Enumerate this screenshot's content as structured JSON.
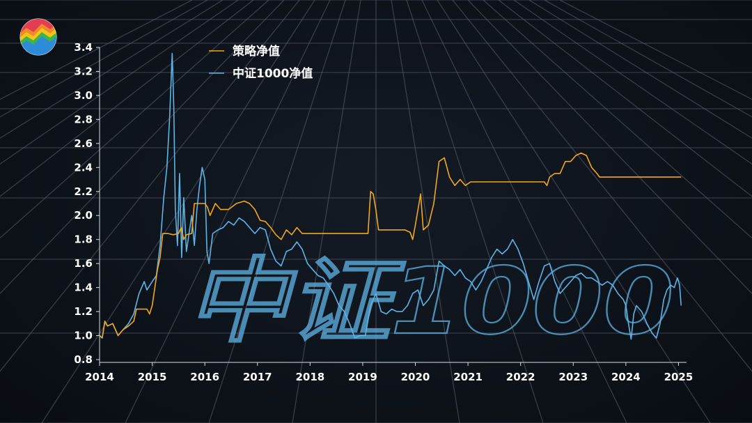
{
  "watermark_text": "中证1000",
  "logo_icon": "rainbow-zigzag-logo-icon",
  "colors": {
    "background": "#0c1118",
    "grid": "#5b6270",
    "strategy": "#f2a81d",
    "index": "#5fb4e6",
    "text": "#ffffff"
  },
  "chart_data": {
    "type": "line",
    "title": "",
    "xlabel": "",
    "ylabel": "",
    "xlim": [
      2014.0,
      2025.1
    ],
    "ylim": [
      0.8,
      3.4
    ],
    "x_ticks": [
      "2014",
      "2015",
      "2016",
      "2017",
      "2018",
      "2019",
      "2020",
      "2021",
      "2022",
      "2023",
      "2024",
      "2025"
    ],
    "y_ticks": [
      "0.8",
      "1.0",
      "1.2",
      "1.4",
      "1.6",
      "1.8",
      "2.0",
      "2.2",
      "2.4",
      "2.6",
      "2.8",
      "3.0",
      "3.2",
      "3.4"
    ],
    "legend_position": "top-left",
    "grid": true,
    "series": [
      {
        "name": "策略净值",
        "color": "#f2a81d",
        "points": [
          [
            2014.0,
            1.0
          ],
          [
            2014.05,
            0.98
          ],
          [
            2014.1,
            1.12
          ],
          [
            2014.15,
            1.08
          ],
          [
            2014.25,
            1.1
          ],
          [
            2014.35,
            1.0
          ],
          [
            2014.45,
            1.05
          ],
          [
            2014.55,
            1.08
          ],
          [
            2014.65,
            1.12
          ],
          [
            2014.7,
            1.22
          ],
          [
            2014.9,
            1.22
          ],
          [
            2014.95,
            1.18
          ],
          [
            2015.0,
            1.25
          ],
          [
            2015.05,
            1.4
          ],
          [
            2015.1,
            1.55
          ],
          [
            2015.15,
            1.65
          ],
          [
            2015.2,
            1.85
          ],
          [
            2015.3,
            1.85
          ],
          [
            2015.4,
            1.84
          ],
          [
            2015.5,
            1.85
          ],
          [
            2015.55,
            1.9
          ],
          [
            2015.6,
            1.8
          ],
          [
            2015.65,
            1.84
          ],
          [
            2015.75,
            1.85
          ],
          [
            2015.8,
            2.1
          ],
          [
            2015.95,
            2.1
          ],
          [
            2016.0,
            2.1
          ],
          [
            2016.05,
            2.07
          ],
          [
            2016.1,
            2.0
          ],
          [
            2016.2,
            2.1
          ],
          [
            2016.3,
            2.05
          ],
          [
            2016.45,
            2.05
          ],
          [
            2016.6,
            2.1
          ],
          [
            2016.75,
            2.12
          ],
          [
            2016.85,
            2.1
          ],
          [
            2016.95,
            2.05
          ],
          [
            2017.05,
            1.96
          ],
          [
            2017.15,
            1.95
          ],
          [
            2017.25,
            1.9
          ],
          [
            2017.35,
            1.84
          ],
          [
            2017.45,
            1.8
          ],
          [
            2017.55,
            1.88
          ],
          [
            2017.65,
            1.84
          ],
          [
            2017.75,
            1.9
          ],
          [
            2017.85,
            1.85
          ],
          [
            2018.0,
            1.85
          ],
          [
            2018.5,
            1.85
          ],
          [
            2019.0,
            1.85
          ],
          [
            2019.1,
            1.85
          ],
          [
            2019.15,
            2.2
          ],
          [
            2019.2,
            2.18
          ],
          [
            2019.25,
            2.05
          ],
          [
            2019.3,
            1.88
          ],
          [
            2019.6,
            1.88
          ],
          [
            2019.8,
            1.88
          ],
          [
            2019.9,
            1.86
          ],
          [
            2019.95,
            1.8
          ],
          [
            2020.0,
            1.92
          ],
          [
            2020.1,
            2.18
          ],
          [
            2020.15,
            1.88
          ],
          [
            2020.25,
            1.92
          ],
          [
            2020.35,
            2.1
          ],
          [
            2020.45,
            2.45
          ],
          [
            2020.55,
            2.48
          ],
          [
            2020.65,
            2.32
          ],
          [
            2020.75,
            2.25
          ],
          [
            2020.85,
            2.3
          ],
          [
            2020.95,
            2.25
          ],
          [
            2021.05,
            2.28
          ],
          [
            2021.2,
            2.28
          ],
          [
            2021.5,
            2.28
          ],
          [
            2022.0,
            2.28
          ],
          [
            2022.45,
            2.28
          ],
          [
            2022.5,
            2.25
          ],
          [
            2022.55,
            2.32
          ],
          [
            2022.65,
            2.35
          ],
          [
            2022.75,
            2.35
          ],
          [
            2022.85,
            2.45
          ],
          [
            2022.95,
            2.45
          ],
          [
            2023.05,
            2.5
          ],
          [
            2023.15,
            2.52
          ],
          [
            2023.25,
            2.5
          ],
          [
            2023.35,
            2.4
          ],
          [
            2023.45,
            2.35
          ],
          [
            2023.5,
            2.32
          ],
          [
            2023.7,
            2.32
          ],
          [
            2024.0,
            2.32
          ],
          [
            2024.5,
            2.32
          ],
          [
            2025.0,
            2.32
          ],
          [
            2025.05,
            2.32
          ]
        ]
      },
      {
        "name": "中证1000净值",
        "color": "#5fb4e6",
        "points": [
          [
            2014.0,
            1.0
          ],
          [
            2014.05,
            0.98
          ],
          [
            2014.1,
            1.12
          ],
          [
            2014.15,
            1.08
          ],
          [
            2014.25,
            1.1
          ],
          [
            2014.35,
            1.0
          ],
          [
            2014.45,
            1.05
          ],
          [
            2014.55,
            1.1
          ],
          [
            2014.65,
            1.18
          ],
          [
            2014.75,
            1.35
          ],
          [
            2014.85,
            1.45
          ],
          [
            2014.9,
            1.38
          ],
          [
            2015.0,
            1.45
          ],
          [
            2015.08,
            1.5
          ],
          [
            2015.15,
            1.75
          ],
          [
            2015.22,
            2.15
          ],
          [
            2015.28,
            2.4
          ],
          [
            2015.33,
            2.8
          ],
          [
            2015.38,
            3.35
          ],
          [
            2015.41,
            2.9
          ],
          [
            2015.44,
            2.05
          ],
          [
            2015.48,
            1.75
          ],
          [
            2015.52,
            2.35
          ],
          [
            2015.56,
            1.65
          ],
          [
            2015.6,
            2.15
          ],
          [
            2015.65,
            1.7
          ],
          [
            2015.7,
            1.85
          ],
          [
            2015.75,
            2.0
          ],
          [
            2015.8,
            1.75
          ],
          [
            2015.85,
            2.05
          ],
          [
            2015.9,
            2.25
          ],
          [
            2015.95,
            2.4
          ],
          [
            2016.0,
            2.3
          ],
          [
            2016.04,
            1.7
          ],
          [
            2016.08,
            1.6
          ],
          [
            2016.15,
            1.85
          ],
          [
            2016.25,
            1.88
          ],
          [
            2016.35,
            1.9
          ],
          [
            2016.45,
            1.95
          ],
          [
            2016.55,
            1.92
          ],
          [
            2016.65,
            1.98
          ],
          [
            2016.75,
            1.95
          ],
          [
            2016.85,
            1.9
          ],
          [
            2016.95,
            1.85
          ],
          [
            2017.05,
            1.9
          ],
          [
            2017.15,
            1.88
          ],
          [
            2017.25,
            1.72
          ],
          [
            2017.35,
            1.62
          ],
          [
            2017.45,
            1.58
          ],
          [
            2017.55,
            1.7
          ],
          [
            2017.65,
            1.72
          ],
          [
            2017.75,
            1.78
          ],
          [
            2017.85,
            1.72
          ],
          [
            2017.95,
            1.6
          ],
          [
            2018.05,
            1.55
          ],
          [
            2018.15,
            1.5
          ],
          [
            2018.25,
            1.48
          ],
          [
            2018.35,
            1.42
          ],
          [
            2018.45,
            1.35
          ],
          [
            2018.55,
            1.25
          ],
          [
            2018.65,
            1.2
          ],
          [
            2018.75,
            1.1
          ],
          [
            2018.85,
            0.98
          ],
          [
            2018.95,
            1.0
          ],
          [
            2019.05,
            1.0
          ],
          [
            2019.15,
            1.25
          ],
          [
            2019.25,
            1.35
          ],
          [
            2019.35,
            1.2
          ],
          [
            2019.45,
            1.18
          ],
          [
            2019.55,
            1.22
          ],
          [
            2019.65,
            1.2
          ],
          [
            2019.75,
            1.2
          ],
          [
            2019.85,
            1.25
          ],
          [
            2019.95,
            1.35
          ],
          [
            2020.05,
            1.38
          ],
          [
            2020.15,
            1.25
          ],
          [
            2020.25,
            1.3
          ],
          [
            2020.35,
            1.38
          ],
          [
            2020.45,
            1.62
          ],
          [
            2020.55,
            1.58
          ],
          [
            2020.65,
            1.55
          ],
          [
            2020.75,
            1.5
          ],
          [
            2020.85,
            1.55
          ],
          [
            2020.95,
            1.48
          ],
          [
            2021.05,
            1.45
          ],
          [
            2021.15,
            1.38
          ],
          [
            2021.25,
            1.45
          ],
          [
            2021.35,
            1.55
          ],
          [
            2021.45,
            1.65
          ],
          [
            2021.55,
            1.72
          ],
          [
            2021.65,
            1.68
          ],
          [
            2021.75,
            1.72
          ],
          [
            2021.85,
            1.8
          ],
          [
            2021.95,
            1.72
          ],
          [
            2022.05,
            1.6
          ],
          [
            2022.15,
            1.45
          ],
          [
            2022.25,
            1.3
          ],
          [
            2022.35,
            1.45
          ],
          [
            2022.45,
            1.58
          ],
          [
            2022.55,
            1.6
          ],
          [
            2022.65,
            1.45
          ],
          [
            2022.75,
            1.35
          ],
          [
            2022.85,
            1.4
          ],
          [
            2022.95,
            1.45
          ],
          [
            2023.05,
            1.5
          ],
          [
            2023.15,
            1.52
          ],
          [
            2023.25,
            1.48
          ],
          [
            2023.35,
            1.48
          ],
          [
            2023.45,
            1.45
          ],
          [
            2023.55,
            1.42
          ],
          [
            2023.65,
            1.45
          ],
          [
            2023.75,
            1.42
          ],
          [
            2023.85,
            1.35
          ],
          [
            2023.95,
            1.3
          ],
          [
            2024.0,
            1.25
          ],
          [
            2024.05,
            1.1
          ],
          [
            2024.1,
            0.97
          ],
          [
            2024.15,
            1.18
          ],
          [
            2024.2,
            1.25
          ],
          [
            2024.3,
            1.2
          ],
          [
            2024.4,
            1.1
          ],
          [
            2024.5,
            1.02
          ],
          [
            2024.58,
            0.98
          ],
          [
            2024.65,
            1.1
          ],
          [
            2024.72,
            1.3
          ],
          [
            2024.78,
            1.38
          ],
          [
            2024.85,
            1.42
          ],
          [
            2024.92,
            1.4
          ],
          [
            2024.98,
            1.48
          ],
          [
            2025.02,
            1.42
          ],
          [
            2025.05,
            1.25
          ]
        ]
      }
    ]
  }
}
